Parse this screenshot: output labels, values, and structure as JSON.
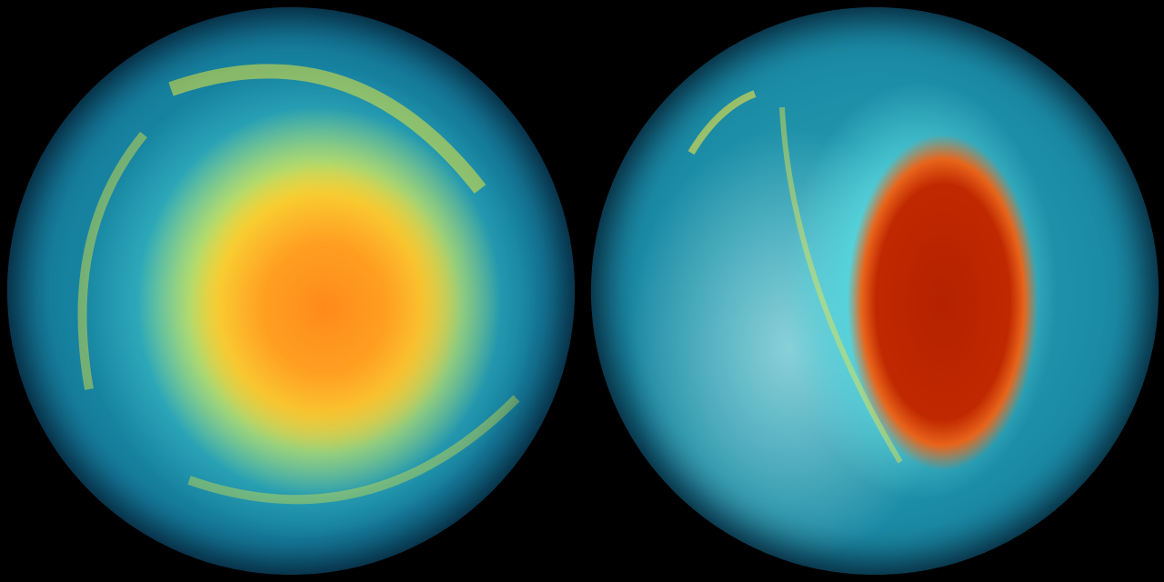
{
  "scene": {
    "globes": [
      {
        "id": "left",
        "hotspot_color": "#ff8a1a",
        "ring_color": "#f4e83a",
        "base_color": "#167f9e"
      },
      {
        "id": "right",
        "hotspot_color": "#b52200",
        "ring_color": "#55d4dc",
        "base_color": "#1b8aa4"
      }
    ],
    "background": "#000000"
  }
}
